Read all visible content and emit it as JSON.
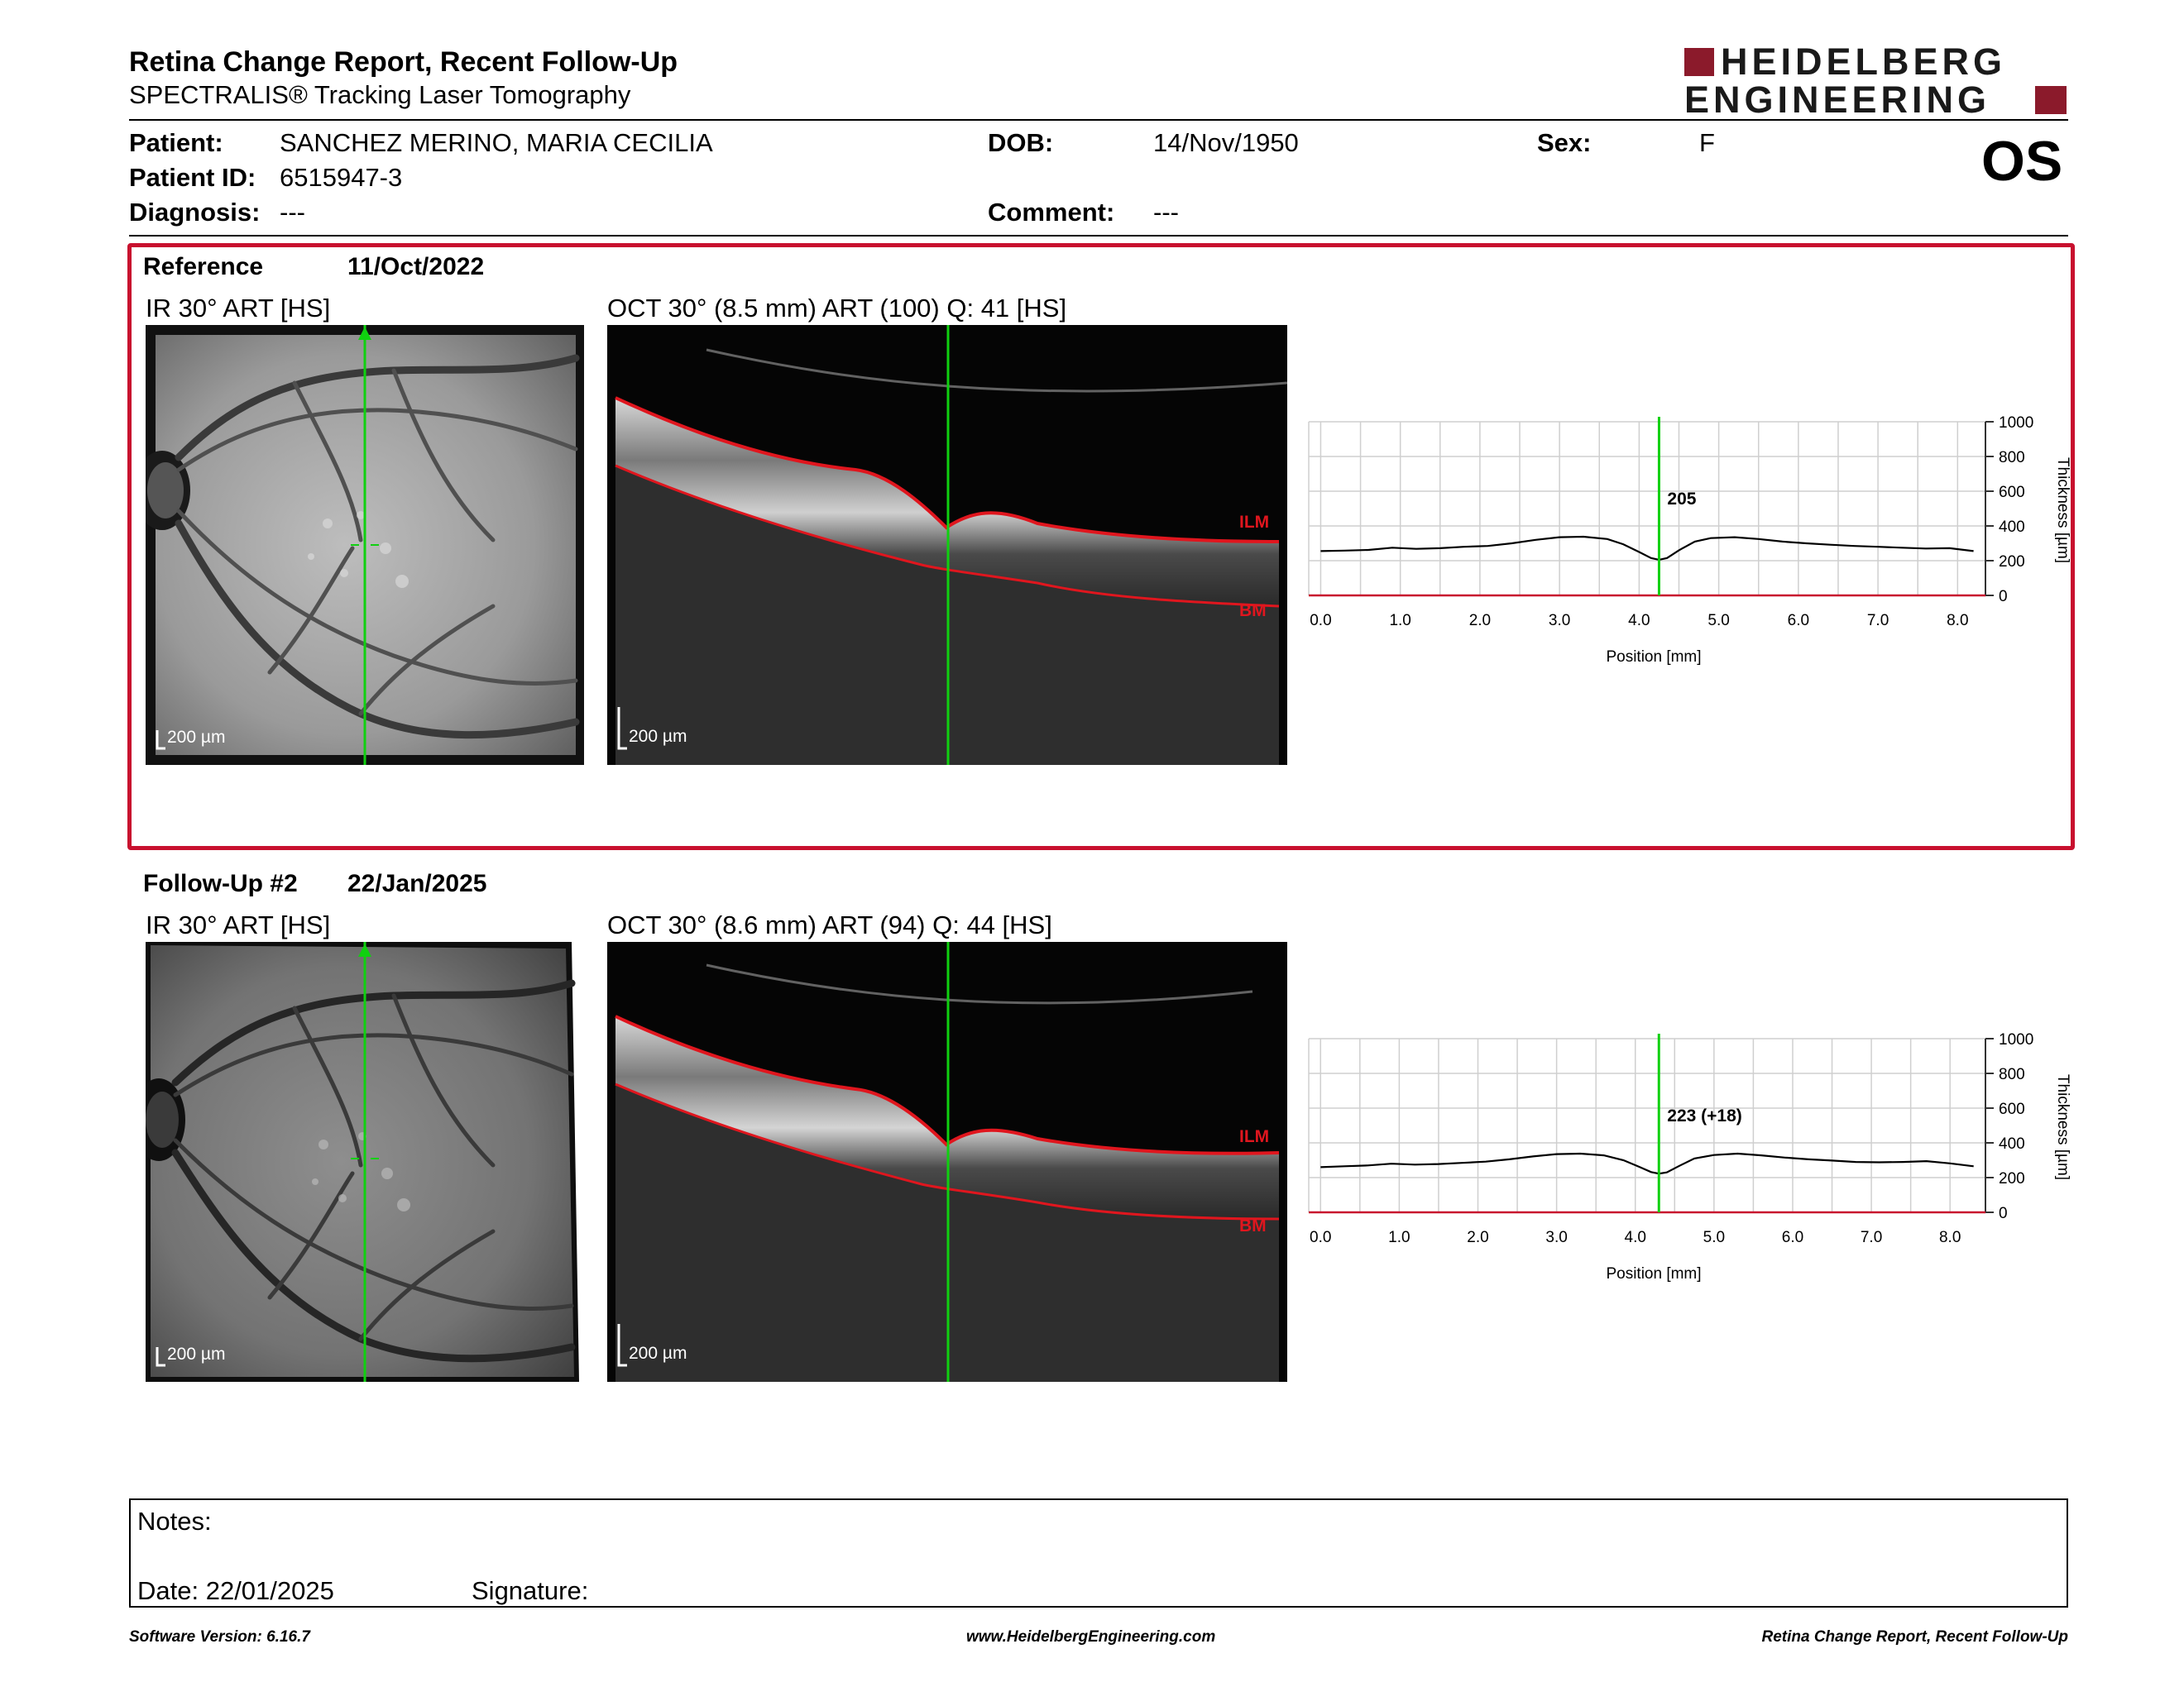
{
  "header": {
    "title": "Retina Change Report, Recent Follow-Up",
    "subtitle": "SPECTRALIS® Tracking Laser Tomography",
    "logo_line1": "HEIDELBERG",
    "logo_line2": "ENGINEERING",
    "brand_color": "#8b1a2b"
  },
  "patient": {
    "patient_label": "Patient:",
    "patient_value": "SANCHEZ MERINO, MARIA CECILIA",
    "id_label": "Patient ID:",
    "id_value": "6515947-3",
    "diagnosis_label": "Diagnosis:",
    "diagnosis_value": "---",
    "dob_label": "DOB:",
    "dob_value": "14/Nov/1950",
    "comment_label": "Comment:",
    "comment_value": "---",
    "sex_label": "Sex:",
    "sex_value": "F",
    "eye": "OS"
  },
  "reference": {
    "label": "Reference",
    "date": "11/Oct/2022",
    "ir_caption": "IR 30° ART [HS]",
    "oct_caption": "OCT 30° (8.5 mm) ART (100) Q: 41 [HS]",
    "scale_ir": "200 µm",
    "scale_oct": "200 µm",
    "ilm_label": "ILM",
    "bm_label": "BM",
    "border_color": "#c8102e"
  },
  "followup": {
    "label": "Follow-Up #2",
    "date": "22/Jan/2025",
    "ir_caption": "IR 30° ART [HS]",
    "oct_caption": "OCT 30° (8.6 mm) ART (94) Q: 44 [HS]",
    "scale_ir": "200 µm",
    "scale_oct": "200 µm",
    "ilm_label": "ILM",
    "bm_label": "BM"
  },
  "chart_data": [
    {
      "type": "line",
      "name_in_report": "reference-thickness-profile",
      "xlabel": "Position [mm]",
      "ylabel": "Thickness [µm]",
      "xlim": [
        -0.15,
        8.35
      ],
      "ylim": [
        0,
        1000
      ],
      "xticks": [
        "0.0",
        "1.0",
        "2.0",
        "3.0",
        "4.0",
        "5.0",
        "6.0",
        "7.0",
        "8.0"
      ],
      "yticks": [
        "0",
        "200",
        "400",
        "600",
        "800",
        "1000"
      ],
      "grid": true,
      "marker_x": 4.25,
      "marker_label": "205",
      "series": [
        {
          "x": [
            0.0,
            0.3,
            0.6,
            0.9,
            1.2,
            1.5,
            1.8,
            2.1,
            2.4,
            2.7,
            3.0,
            3.3,
            3.6,
            3.8,
            4.0,
            4.15,
            4.25,
            4.35,
            4.5,
            4.7,
            4.9,
            5.2,
            5.5,
            5.8,
            6.1,
            6.4,
            6.7,
            7.0,
            7.3,
            7.6,
            7.9,
            8.2
          ],
          "y": [
            255,
            258,
            262,
            275,
            268,
            272,
            280,
            285,
            300,
            320,
            335,
            338,
            325,
            295,
            250,
            215,
            205,
            215,
            260,
            310,
            330,
            335,
            325,
            310,
            300,
            292,
            285,
            280,
            275,
            270,
            272,
            255
          ]
        }
      ]
    },
    {
      "type": "line",
      "name_in_report": "followup-thickness-profile",
      "xlabel": "Position [mm]",
      "ylabel": "Thickness [µm]",
      "xlim": [
        -0.15,
        8.45
      ],
      "ylim": [
        0,
        1000
      ],
      "xticks": [
        "0.0",
        "1.0",
        "2.0",
        "3.0",
        "4.0",
        "5.0",
        "6.0",
        "7.0",
        "8.0"
      ],
      "yticks": [
        "0",
        "200",
        "400",
        "600",
        "800",
        "1000"
      ],
      "grid": true,
      "marker_x": 4.3,
      "marker_label": "223 (+18)",
      "series": [
        {
          "x": [
            0.0,
            0.3,
            0.6,
            0.9,
            1.2,
            1.5,
            1.8,
            2.1,
            2.4,
            2.7,
            3.0,
            3.3,
            3.6,
            3.85,
            4.05,
            4.2,
            4.3,
            4.4,
            4.55,
            4.75,
            5.0,
            5.3,
            5.6,
            5.9,
            6.2,
            6.5,
            6.8,
            7.1,
            7.4,
            7.7,
            8.0,
            8.3
          ],
          "y": [
            260,
            265,
            270,
            280,
            275,
            278,
            285,
            292,
            305,
            322,
            335,
            338,
            328,
            300,
            262,
            232,
            223,
            230,
            265,
            310,
            330,
            338,
            328,
            315,
            305,
            298,
            290,
            288,
            290,
            295,
            282,
            265
          ]
        }
      ]
    }
  ],
  "notes": {
    "notes_label": "Notes:",
    "date_label": "Date: 22/01/2025",
    "signature_label": "Signature:"
  },
  "footer": {
    "version": "Software Version: 6.16.7",
    "website": "www.HeidelbergEngineering.com",
    "report_name": "Retina Change Report, Recent Follow-Up"
  }
}
